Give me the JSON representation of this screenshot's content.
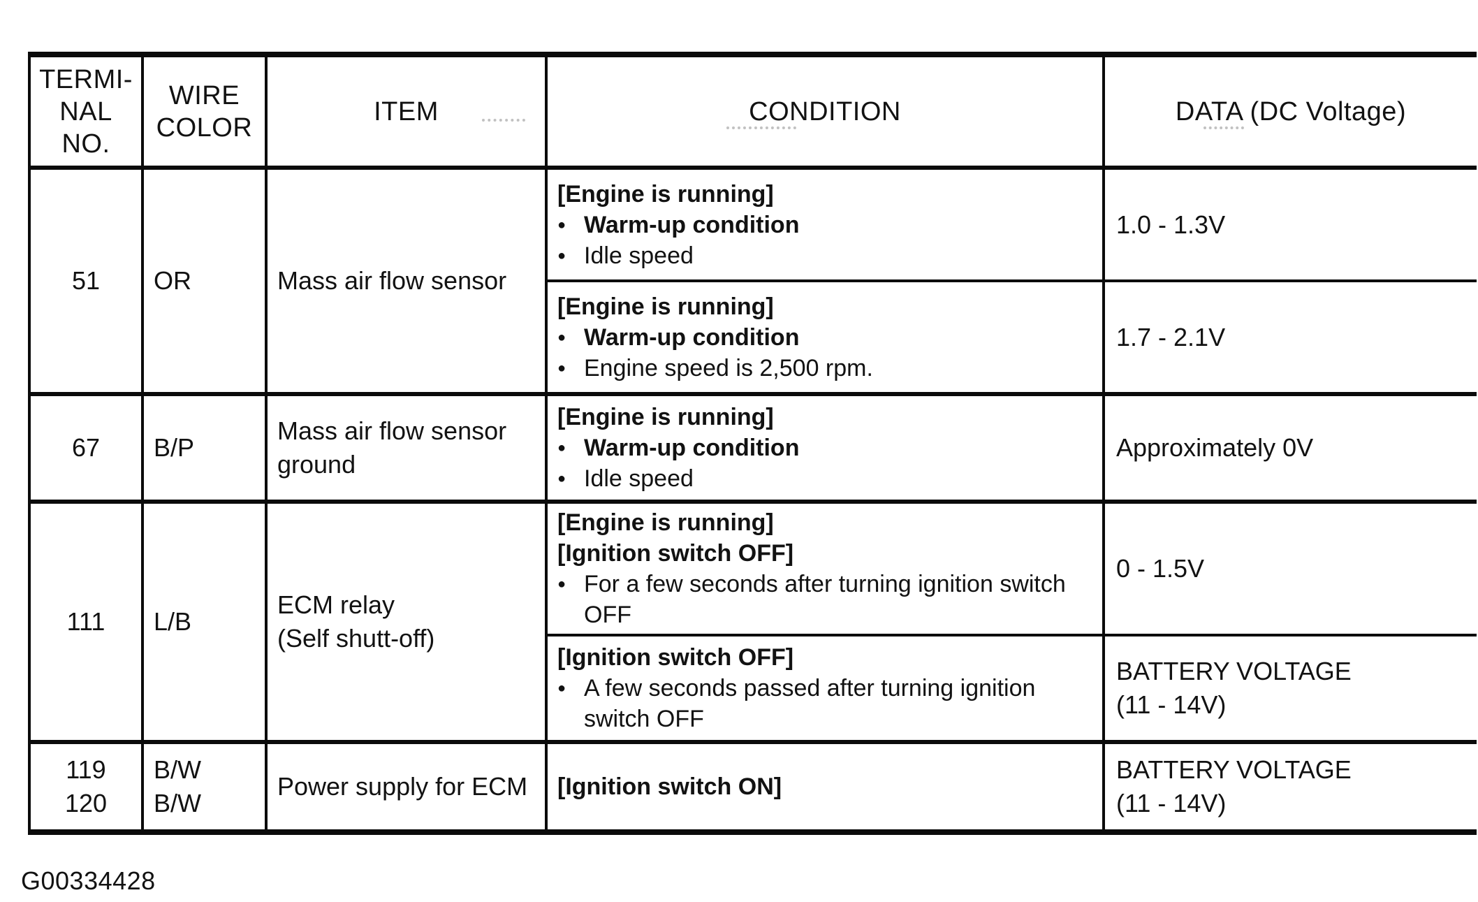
{
  "header": {
    "terminal": "TERMI-\nNAL\nNO.",
    "wire": "WIRE\nCOLOR",
    "item": "ITEM",
    "condition": "CONDITION",
    "data": "DATA (DC Voltage)"
  },
  "icons": {
    "bullet": "●"
  },
  "rows": [
    {
      "terminal": "51",
      "wire": "OR",
      "item": "Mass air flow sensor",
      "subrows": [
        {
          "condition_lines": [
            {
              "text": "[Engine is running]"
            },
            {
              "text": "Warm-up condition"
            },
            {
              "text": "Idle speed"
            }
          ],
          "data": "1.0 - 1.3V"
        },
        {
          "condition_lines": [
            {
              "text": "[Engine is running]"
            },
            {
              "text": "Warm-up condition"
            },
            {
              "text": "Engine speed is 2,500 rpm."
            }
          ],
          "data": "1.7 - 2.1V"
        }
      ]
    },
    {
      "terminal": "67",
      "wire": "B/P",
      "item": "Mass air flow sensor\nground",
      "subrows": [
        {
          "condition_lines": [
            {
              "text": "[Engine is running]"
            },
            {
              "text": "Warm-up condition"
            },
            {
              "text": "Idle speed"
            }
          ],
          "data": "Approximately 0V"
        }
      ]
    },
    {
      "terminal": "111",
      "wire": "L/B",
      "item": "ECM relay\n(Self shutt-off)",
      "subrows": [
        {
          "condition_lines": [
            {
              "text": "[Engine is running]"
            },
            {
              "text": "[Ignition switch OFF]"
            },
            {
              "text": "For a few seconds after turning ignition switch\nOFF"
            }
          ],
          "data": "0 - 1.5V"
        },
        {
          "condition_lines": [
            {
              "text": "[Ignition switch OFF]"
            },
            {
              "text": "A few seconds passed after turning ignition\nswitch OFF"
            }
          ],
          "data": "BATTERY VOLTAGE\n(11 - 14V)"
        }
      ]
    },
    {
      "terminal": "119\n120",
      "wire": "B/W\nB/W",
      "item": "Power supply for ECM",
      "subrows": [
        {
          "condition_lines": [
            {
              "text": "[Ignition switch ON]"
            }
          ],
          "data": "BATTERY VOLTAGE\n(11 - 14V)"
        }
      ]
    }
  ],
  "footer": {
    "figure_code": "G00334428"
  }
}
